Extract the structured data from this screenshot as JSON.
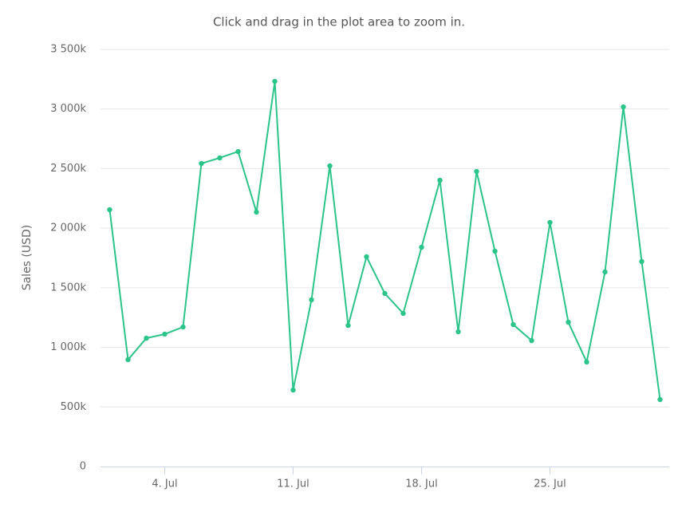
{
  "chart_data": {
    "type": "line",
    "title": "Click and drag in the plot area to zoom in.",
    "y_label": "Sales (USD)",
    "categories": [
      null,
      null,
      null,
      "4. Jul",
      null,
      null,
      null,
      null,
      null,
      null,
      "11. Jul",
      null,
      null,
      null,
      null,
      null,
      null,
      "18. Jul",
      null,
      null,
      null,
      null,
      null,
      null,
      "25. Jul",
      null,
      null,
      null,
      null,
      null,
      null
    ],
    "series": [
      {
        "name": "Sales",
        "color": "#2bc48a",
        "values": [
          2155000,
          897000,
          1077000,
          1111000,
          1171000,
          2543000,
          2590000,
          2643000,
          2135000,
          3232000,
          642000,
          1399000,
          2523000,
          1184000,
          1760000,
          1452000,
          1285000,
          1840000,
          2402000,
          1131000,
          2476000,
          1807000,
          1191000,
          1057000,
          2048000,
          1211000,
          877000,
          1633000,
          3018000,
          1720000,
          562000
        ]
      }
    ],
    "ylim": [
      0,
      3500000
    ],
    "yticks": [
      0,
      {
        "value": 500000,
        "label": "500k"
      },
      {
        "value": 1000000,
        "label": "1 000k"
      },
      {
        "value": 1500000,
        "label": "1 500k"
      },
      {
        "value": 2000000,
        "label": "2 000k"
      },
      {
        "value": 2500000,
        "label": "2 500k"
      },
      {
        "value": 3000000,
        "label": "3 000k"
      },
      {
        "value": 3500000,
        "label": "3 500k"
      }
    ],
    "grid": true
  }
}
